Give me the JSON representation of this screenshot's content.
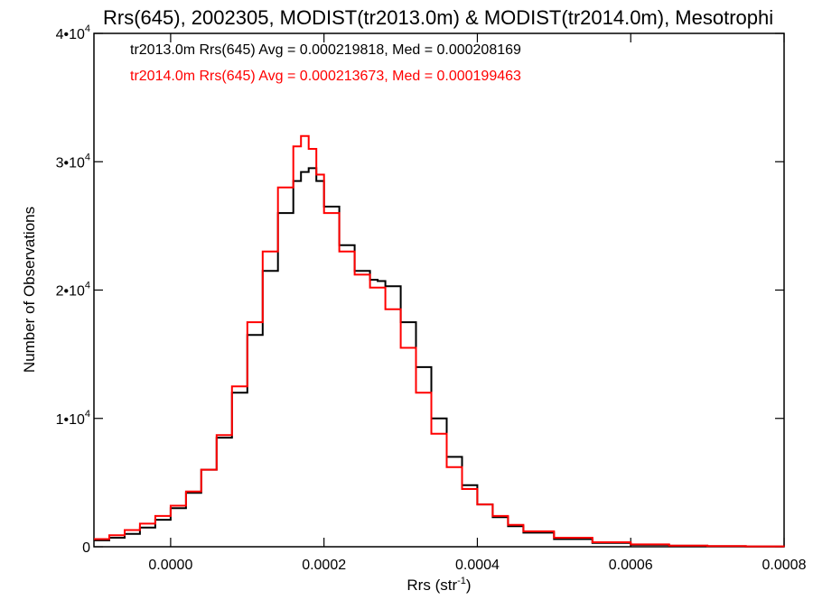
{
  "chart_data": {
    "type": "line",
    "step": true,
    "title": "Rrs(645), 2002305, MODIST(tr2013.0m) & MODIST(tr2014.0m), Mesotrophi",
    "xlabel": "Rrs (str",
    "xlabel_sup": "-1",
    "xlabel_end": ")",
    "ylabel": "Number of Observations",
    "xlim": [
      -0.0001,
      0.0008
    ],
    "ylim": [
      0,
      40000
    ],
    "grid": false,
    "legend_position": "top-left",
    "x_ticks": [
      {
        "value": 0.0,
        "label": "0.0000"
      },
      {
        "value": 0.0002,
        "label": "0.0002"
      },
      {
        "value": 0.0004,
        "label": "0.0004"
      },
      {
        "value": 0.0006,
        "label": "0.0006"
      },
      {
        "value": 0.0008,
        "label": "0.0008"
      }
    ],
    "y_ticks": [
      {
        "value": 0,
        "base": "0",
        "exp": ""
      },
      {
        "value": 10000,
        "base": "1•10",
        "exp": "4"
      },
      {
        "value": 20000,
        "base": "2•10",
        "exp": "4"
      },
      {
        "value": 30000,
        "base": "3•10",
        "exp": "4"
      },
      {
        "value": 40000,
        "base": "4•10",
        "exp": "4"
      }
    ],
    "series": [
      {
        "name": "tr2013.0m",
        "color": "#000000",
        "label": "tr2013.0m Rrs(645) Avg = 0.000219818, Med = 0.000208169",
        "x": [
          -0.0001,
          -8e-05,
          -6e-05,
          -4e-05,
          -2e-05,
          0.0,
          2e-05,
          4e-05,
          6e-05,
          8e-05,
          0.0001,
          0.00012,
          0.00014,
          0.00016,
          0.00017,
          0.00018,
          0.00019,
          0.0002,
          0.00022,
          0.00024,
          0.00026,
          0.00027,
          0.00028,
          0.0003,
          0.00032,
          0.00034,
          0.00036,
          0.00038,
          0.0004,
          0.00042,
          0.00044,
          0.00046,
          0.0005,
          0.00055,
          0.0006,
          0.00065,
          0.0007,
          0.00075,
          0.0008
        ],
        "y": [
          500,
          700,
          1000,
          1500,
          2100,
          3000,
          4200,
          6000,
          8500,
          12000,
          16500,
          21500,
          26000,
          28500,
          29200,
          29500,
          28500,
          26500,
          23500,
          21500,
          20800,
          20700,
          20300,
          17500,
          14000,
          10000,
          7000,
          4800,
          3300,
          2300,
          1600,
          1100,
          600,
          300,
          150,
          80,
          40,
          20,
          10
        ]
      },
      {
        "name": "tr2014.0m",
        "color": "#ff0000",
        "label": "tr2014.0m Rrs(645) Avg = 0.000213673, Med = 0.000199463",
        "x": [
          -0.0001,
          -8e-05,
          -6e-05,
          -4e-05,
          -2e-05,
          0.0,
          2e-05,
          4e-05,
          6e-05,
          8e-05,
          0.0001,
          0.00012,
          0.00014,
          0.00016,
          0.00017,
          0.00018,
          0.00019,
          0.0002,
          0.00022,
          0.00024,
          0.00026,
          0.00028,
          0.0003,
          0.00032,
          0.00034,
          0.00036,
          0.00038,
          0.0004,
          0.00042,
          0.00044,
          0.00046,
          0.0005,
          0.00055,
          0.0006,
          0.00065,
          0.0007,
          0.00075,
          0.0008
        ],
        "y": [
          600,
          900,
          1300,
          1800,
          2400,
          3200,
          4300,
          6000,
          8700,
          12500,
          17500,
          23000,
          28000,
          31200,
          32000,
          31000,
          29000,
          26000,
          23000,
          21200,
          20200,
          18500,
          15500,
          12000,
          8800,
          6200,
          4500,
          3300,
          2400,
          1700,
          1200,
          700,
          350,
          180,
          90,
          50,
          25,
          10
        ]
      }
    ]
  }
}
